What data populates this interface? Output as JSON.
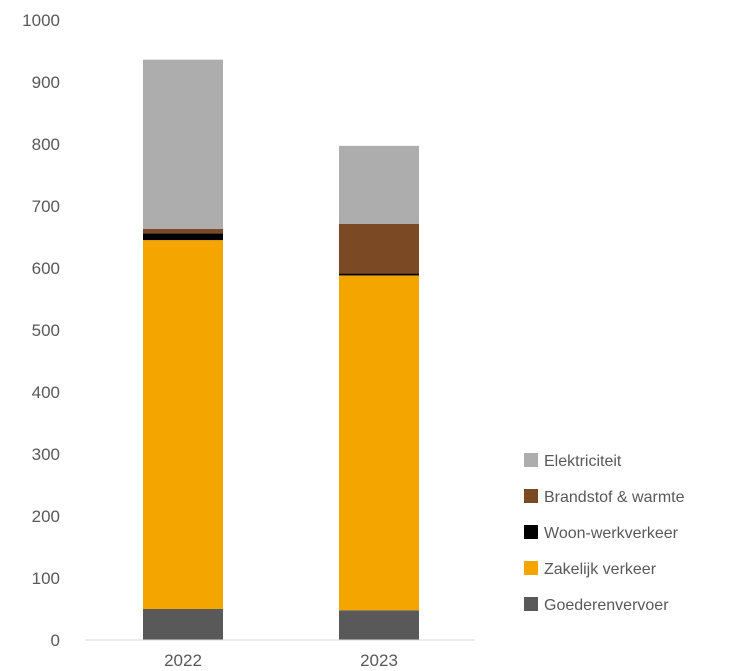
{
  "chart_data": {
    "type": "bar",
    "stacked": true,
    "categories": [
      "2022",
      "2023"
    ],
    "series": [
      {
        "name": "Goederenvervoer",
        "color": "#595959",
        "values": [
          50,
          48
        ]
      },
      {
        "name": "Zakelijk verkeer",
        "color": "#F5A500",
        "values": [
          595,
          540
        ]
      },
      {
        "name": "Woon-werkverkeer",
        "color": "#000000",
        "values": [
          11,
          3
        ]
      },
      {
        "name": "Brandstof & warmte",
        "color": "#7B4A24",
        "values": [
          7,
          80
        ]
      },
      {
        "name": "Elektriciteit",
        "color": "#ADADAD",
        "values": [
          273,
          126
        ]
      }
    ],
    "ylim": [
      0,
      1000
    ],
    "yticks": [
      0,
      100,
      200,
      300,
      400,
      500,
      600,
      700,
      800,
      900,
      1000
    ],
    "grid": false,
    "legend_position": "right",
    "legend_order": [
      "Elektriciteit",
      "Brandstof & warmte",
      "Woon-werkverkeer",
      "Zakelijk verkeer",
      "Goederenvervoer"
    ]
  }
}
